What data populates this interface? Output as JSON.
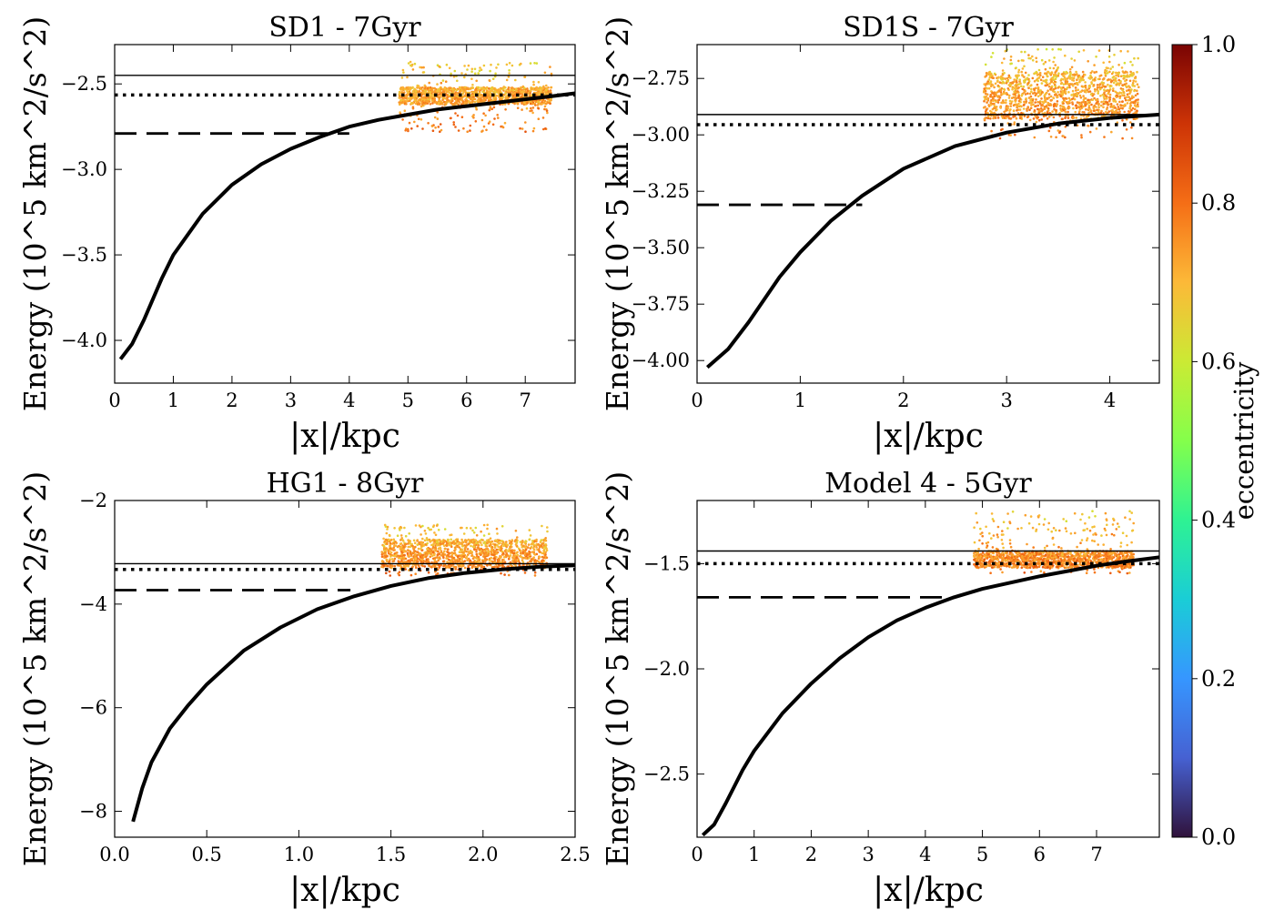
{
  "colorbar": {
    "label": "eccentricity",
    "ticks": [
      0.0,
      0.2,
      0.4,
      0.6,
      0.8,
      1.0
    ],
    "tick_labels": [
      "0.0",
      "0.2",
      "0.4",
      "0.6",
      "0.8",
      "1.0"
    ],
    "colormap": "turbo"
  },
  "chart_data": [
    {
      "type": "line+scatter",
      "title": "SD1 - 7Gyr",
      "xlabel": "|x|/kpc",
      "ylabel": "Energy (10^5 km^2/s^2)",
      "xlim": [
        0,
        7.85
      ],
      "ylim": [
        -4.25,
        -2.27
      ],
      "xticks": [
        0,
        1,
        2,
        3,
        4,
        5,
        6,
        7
      ],
      "xtick_labels": [
        "0",
        "1",
        "2",
        "3",
        "4",
        "5",
        "6",
        "7"
      ],
      "yticks": [
        -4.0,
        -3.5,
        -3.0,
        -2.5
      ],
      "ytick_labels": [
        "−4.0",
        "−3.5",
        "−3.0",
        "−2.5"
      ],
      "curve": {
        "x": [
          0.1,
          0.3,
          0.5,
          0.8,
          1.0,
          1.5,
          2.0,
          2.5,
          3.0,
          3.5,
          4.0,
          4.5,
          5.0,
          5.5,
          6.0,
          6.5,
          7.0,
          7.5,
          7.85
        ],
        "y": [
          -4.11,
          -4.02,
          -3.88,
          -3.64,
          -3.5,
          -3.26,
          -3.09,
          -2.97,
          -2.88,
          -2.81,
          -2.75,
          -2.71,
          -2.68,
          -2.65,
          -2.63,
          -2.61,
          -2.59,
          -2.57,
          -2.555
        ]
      },
      "solid_line": -2.45,
      "dotted_line": -2.565,
      "dashed_line": -2.79,
      "dashed_x_end": 4.0,
      "scatter_band": {
        "x_range": [
          4.85,
          7.45
        ],
        "y_core": [
          -2.62,
          -2.52
        ],
        "y_spread": [
          -2.78,
          -2.37
        ],
        "eccentricity_range": [
          0.62,
          0.85
        ]
      }
    },
    {
      "type": "line+scatter",
      "title": "SD1S - 7Gyr",
      "xlabel": "|x|/kpc",
      "ylabel": "Energy (10^5 km^2/s^2)",
      "xlim": [
        0,
        4.48
      ],
      "ylim": [
        -4.1,
        -2.6
      ],
      "xticks": [
        0,
        1,
        2,
        3,
        4
      ],
      "xtick_labels": [
        "0",
        "1",
        "2",
        "3",
        "4"
      ],
      "yticks": [
        -4.0,
        -3.75,
        -3.5,
        -3.25,
        -3.0,
        -2.75
      ],
      "ytick_labels": [
        "−4.00",
        "−3.75",
        "−3.50",
        "−3.25",
        "−3.00",
        "−2.75"
      ],
      "curve": {
        "x": [
          0.1,
          0.3,
          0.5,
          0.8,
          1.0,
          1.3,
          1.6,
          2.0,
          2.5,
          3.0,
          3.5,
          4.0,
          4.48
        ],
        "y": [
          -4.03,
          -3.95,
          -3.83,
          -3.63,
          -3.52,
          -3.38,
          -3.27,
          -3.15,
          -3.05,
          -2.99,
          -2.95,
          -2.925,
          -2.91
        ]
      },
      "solid_line": -2.91,
      "dotted_line": -2.955,
      "dashed_line": -3.31,
      "dashed_x_end": 1.6,
      "scatter_band": {
        "x_range": [
          2.78,
          4.28
        ],
        "y_core": [
          -2.93,
          -2.72
        ],
        "y_spread": [
          -3.02,
          -2.62
        ],
        "eccentricity_range": [
          0.62,
          0.85
        ]
      }
    },
    {
      "type": "line+scatter",
      "title": "HG1 - 8Gyr",
      "xlabel": "|x|/kpc",
      "ylabel": "Energy (10^5 km^2/s^2)",
      "xlim": [
        0,
        2.5
      ],
      "ylim": [
        -8.5,
        -2.0
      ],
      "xticks": [
        0.0,
        0.5,
        1.0,
        1.5,
        2.0,
        2.5
      ],
      "xtick_labels": [
        "0.0",
        "0.5",
        "1.0",
        "1.5",
        "2.0",
        "2.5"
      ],
      "yticks": [
        -8,
        -6,
        -4,
        -2
      ],
      "ytick_labels": [
        "−8",
        "−6",
        "−4",
        "−2"
      ],
      "curve": {
        "x": [
          0.1,
          0.15,
          0.2,
          0.3,
          0.4,
          0.5,
          0.7,
          0.9,
          1.1,
          1.3,
          1.5,
          1.7,
          1.9,
          2.1,
          2.3,
          2.5
        ],
        "y": [
          -8.2,
          -7.55,
          -7.05,
          -6.4,
          -5.95,
          -5.55,
          -4.9,
          -4.45,
          -4.1,
          -3.85,
          -3.65,
          -3.5,
          -3.4,
          -3.33,
          -3.28,
          -3.25
        ]
      },
      "solid_line": -3.22,
      "dotted_line": -3.33,
      "dashed_line": -3.73,
      "dashed_x_end": 1.28,
      "scatter_band": {
        "x_range": [
          1.45,
          2.35
        ],
        "y_core": [
          -3.3,
          -2.75
        ],
        "y_spread": [
          -3.45,
          -2.45
        ],
        "eccentricity_range": [
          0.62,
          0.85
        ]
      }
    },
    {
      "type": "line+scatter",
      "title": "Model 4 - 5Gyr",
      "xlabel": "|x|/kpc",
      "ylabel": "Energy (10^5 km^2/s^2)",
      "xlim": [
        0,
        8.1
      ],
      "ylim": [
        -2.8,
        -1.2
      ],
      "xticks": [
        0,
        1,
        2,
        3,
        4,
        5,
        6,
        7
      ],
      "xtick_labels": [
        "0",
        "1",
        "2",
        "3",
        "4",
        "5",
        "6",
        "7"
      ],
      "yticks": [
        -2.5,
        -2.0,
        -1.5
      ],
      "ytick_labels": [
        "−2.5",
        "−2.0",
        "−1.5"
      ],
      "curve": {
        "x": [
          0.1,
          0.3,
          0.5,
          0.8,
          1.0,
          1.5,
          2.0,
          2.5,
          3.0,
          3.5,
          4.0,
          4.5,
          5.0,
          5.5,
          6.0,
          6.5,
          7.0,
          7.5,
          8.1
        ],
        "y": [
          -2.79,
          -2.74,
          -2.64,
          -2.48,
          -2.39,
          -2.21,
          -2.07,
          -1.95,
          -1.85,
          -1.77,
          -1.71,
          -1.66,
          -1.62,
          -1.59,
          -1.56,
          -1.535,
          -1.51,
          -1.49,
          -1.47
        ]
      },
      "solid_line": -1.44,
      "dotted_line": -1.5,
      "dashed_line": -1.66,
      "dashed_x_end": 4.4,
      "scatter_band": {
        "x_range": [
          4.85,
          7.65
        ],
        "y_core": [
          -1.52,
          -1.44
        ],
        "y_spread": [
          -1.55,
          -1.25
        ],
        "eccentricity_range": [
          0.62,
          0.85
        ]
      }
    }
  ]
}
